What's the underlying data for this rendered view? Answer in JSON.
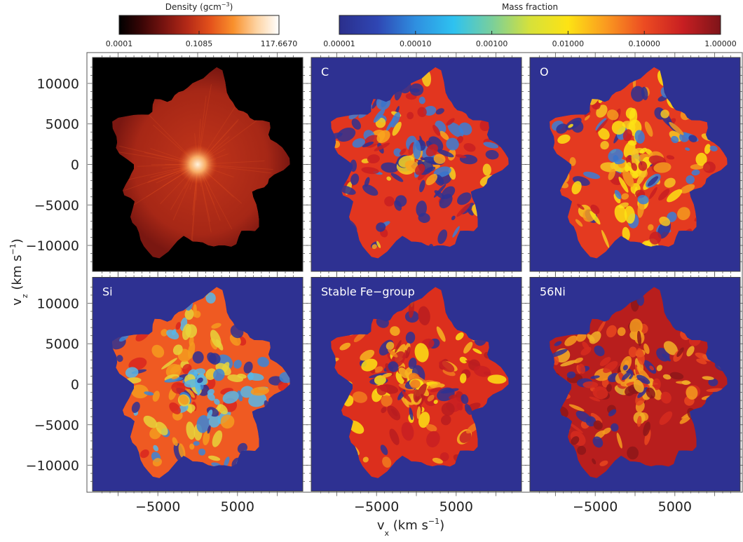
{
  "colors": {
    "density_map": [
      "#000000",
      "#3a0606",
      "#7a1410",
      "#b52a17",
      "#e4521b",
      "#f9902c",
      "#fdd2a0",
      "#ffffff"
    ],
    "fraction_map": [
      "#2b2f8c",
      "#2f46b3",
      "#2f8fe0",
      "#2ec2f0",
      "#79cf9c",
      "#d6e13a",
      "#fde314",
      "#fa9a20",
      "#ec4b22",
      "#c81f22",
      "#7e1419"
    ],
    "panel_background": "#2e3192",
    "density_background": "#000000"
  },
  "chart_data": {
    "type": "heatmap",
    "colorbars": [
      {
        "title": "Density (gcm",
        "title_sup": "−3",
        "title_end": ")",
        "colormap": "density_map",
        "ticks": [
          "0.0001",
          "0.1085",
          "117.6670"
        ]
      },
      {
        "title": "Mass fraction",
        "colormap": "fraction_map",
        "ticks": [
          "0.00001",
          "0.00010",
          "0.00100",
          "0.01000",
          "0.10000",
          "1.00000"
        ]
      }
    ],
    "xlabel": {
      "main": "v",
      "sub": "x",
      "rest": " (km s",
      "sup": "−1",
      "end": ")"
    },
    "ylabel": {
      "main": "v",
      "sub": "z",
      "rest": " (km s",
      "sup": "−1",
      "end": ")"
    },
    "xticks": [
      -5000,
      5000
    ],
    "yticks": [
      10000,
      5000,
      0,
      -5000,
      -10000
    ],
    "xlim": [
      -13200,
      13200
    ],
    "ylim": [
      -13200,
      13200
    ],
    "panels": [
      {
        "label": "",
        "field": "density"
      },
      {
        "label": "C",
        "field": "C"
      },
      {
        "label": "O",
        "field": "O"
      },
      {
        "label": "Si",
        "field": "Si"
      },
      {
        "label": "Stable Fe−group",
        "field": "Fe"
      },
      {
        "label": "56Ni",
        "field": "Ni"
      }
    ]
  }
}
